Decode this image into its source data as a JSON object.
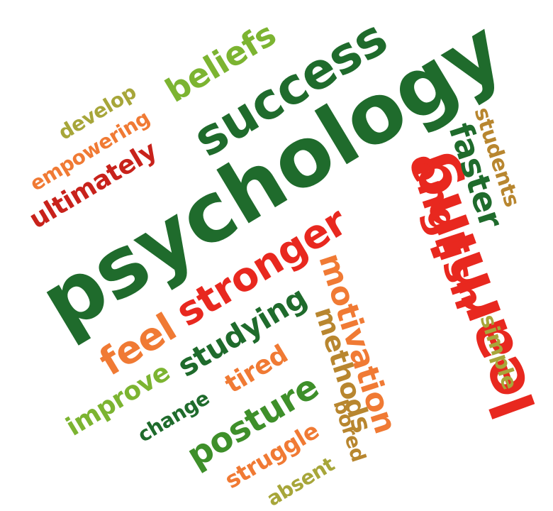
{
  "colors": {
    "dark_green": "#1f6b2c",
    "green": "#3e8f2a",
    "light_green": "#7cb431",
    "olive": "#a7a63a",
    "red": "#e8281f",
    "dark_red": "#c8221b",
    "orange": "#f07a34",
    "brown": "#b8862f"
  },
  "words": [
    {
      "text": "psychology",
      "color": "dark_green"
    },
    {
      "text": "learning",
      "color": "red"
    },
    {
      "text": "success",
      "color": "dark_green"
    },
    {
      "text": "english",
      "color": "red"
    },
    {
      "text": "stronger",
      "color": "red"
    },
    {
      "text": "beliefs",
      "color": "light_green"
    },
    {
      "text": "faster",
      "color": "dark_green"
    },
    {
      "text": "ultimately",
      "color": "dark_red"
    },
    {
      "text": "empowering",
      "color": "orange"
    },
    {
      "text": "develop",
      "color": "olive"
    },
    {
      "text": "students",
      "color": "brown"
    },
    {
      "text": "feel",
      "color": "orange"
    },
    {
      "text": "studying",
      "color": "dark_green"
    },
    {
      "text": "motivation",
      "color": "orange"
    },
    {
      "text": "methods",
      "color": "brown"
    },
    {
      "text": "tired",
      "color": "orange"
    },
    {
      "text": "improve",
      "color": "light_green"
    },
    {
      "text": "change",
      "color": "dark_green"
    },
    {
      "text": "posture",
      "color": "green"
    },
    {
      "text": "simple",
      "color": "olive"
    },
    {
      "text": "struggle",
      "color": "orange"
    },
    {
      "text": "bored",
      "color": "brown"
    },
    {
      "text": "absent",
      "color": "olive"
    }
  ]
}
